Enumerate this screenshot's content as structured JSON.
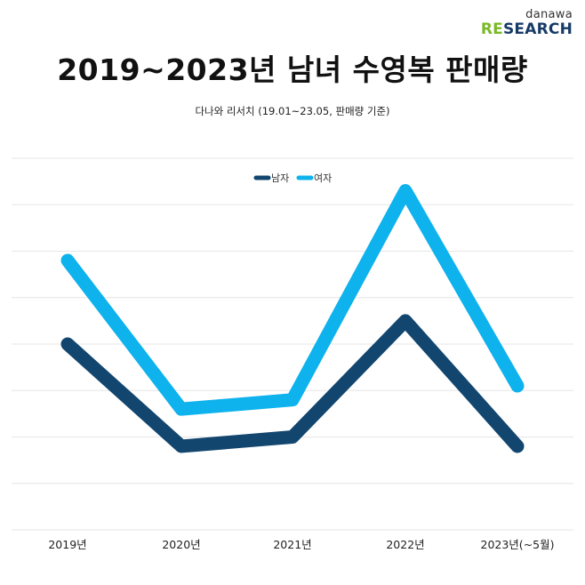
{
  "logo": {
    "top": "danawa",
    "bottom_accent": "RE",
    "bottom_rest": "SEARCH"
  },
  "title": "2019~2023년 남녀 수영복 판매량",
  "subtitle": "다나와 리서치 (19.01~23.05, 판매량 기준)",
  "colors": {
    "male": "#12466f",
    "female": "#0eb2ec",
    "grid": "#e6e6e6"
  },
  "chart_data": {
    "type": "line",
    "categories": [
      "2019년",
      "2020년",
      "2021년",
      "2022년",
      "2023년(~5월)"
    ],
    "series": [
      {
        "name": "남자",
        "values": [
          4.0,
          1.8,
          2.0,
          4.5,
          1.8
        ]
      },
      {
        "name": "여자",
        "values": [
          5.8,
          2.6,
          2.8,
          7.3,
          3.1
        ]
      }
    ],
    "ylim": [
      0,
      8
    ],
    "y_ticks_shown": false,
    "grid": true,
    "legend": "top-center"
  }
}
